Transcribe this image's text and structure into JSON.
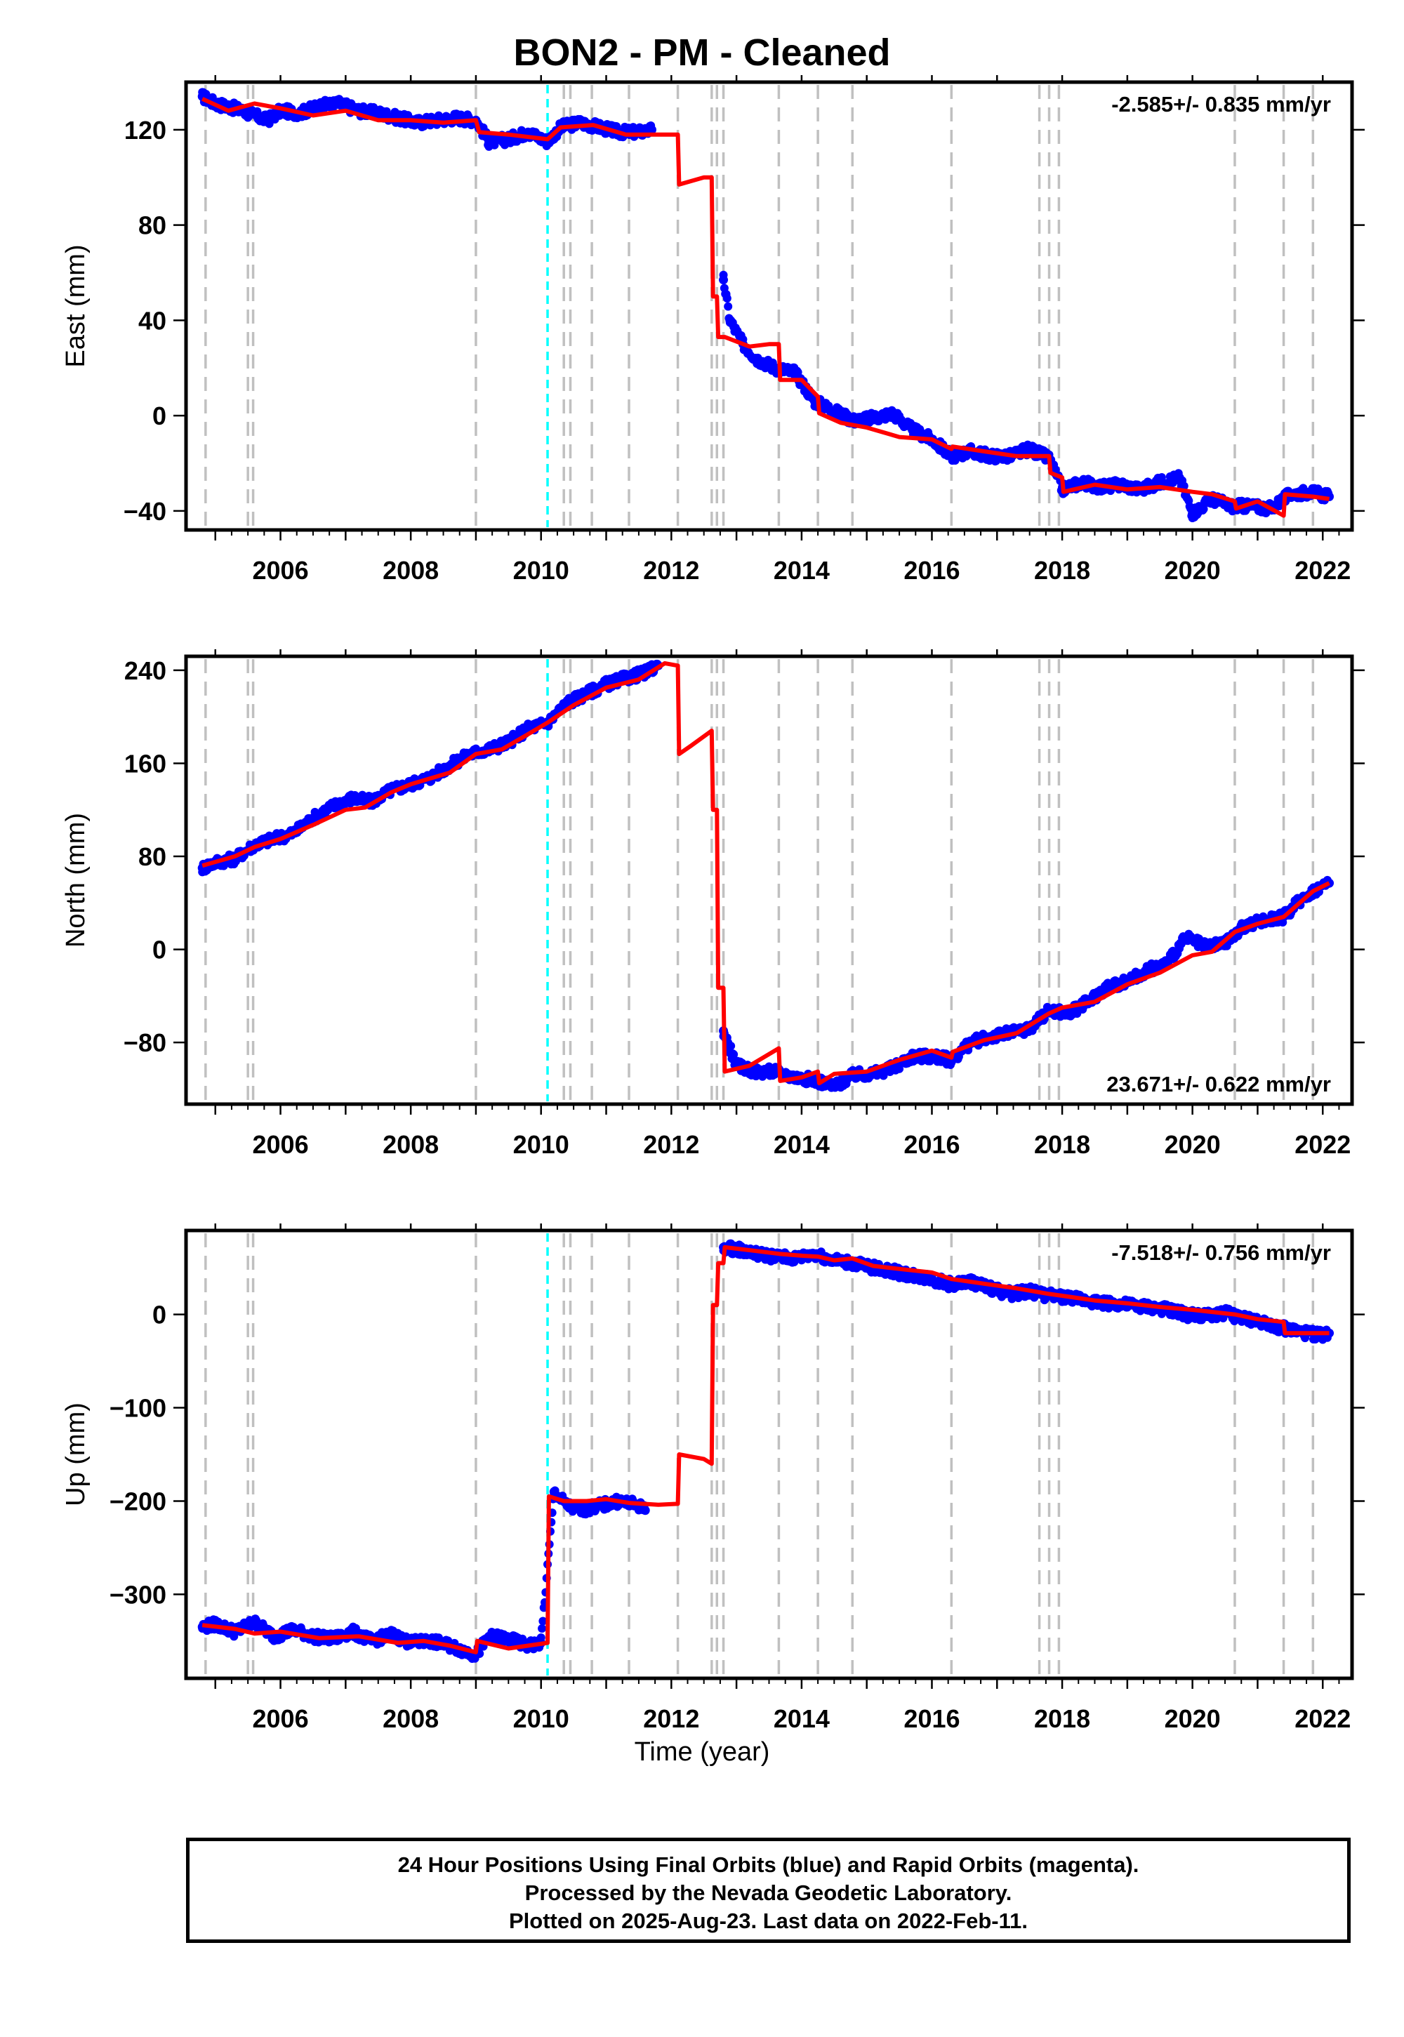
{
  "title": "BON2  - PM - Cleaned",
  "xlabel": "Time (year)",
  "footer": {
    "line1": "24 Hour Positions Using Final Orbits (blue) and Rapid Orbits (magenta).",
    "line2": "Processed by the Nevada Geodetic Laboratory.",
    "line3": "Plotted on 2025-Aug-23. Last data on 2022-Feb-11."
  },
  "colors": {
    "data": "#0000ff",
    "model": "#ff0000",
    "event_lines": "#c0c0c0",
    "highlight_line": "#00ffff"
  },
  "event_lines": [
    2004.85,
    2005.5,
    2005.58,
    2009.0,
    2010.35,
    2010.45,
    2010.78,
    2011.35,
    2012.1,
    2012.62,
    2012.7,
    2012.8,
    2013.65,
    2014.25,
    2014.78,
    2016.3,
    2017.65,
    2017.8,
    2017.95,
    2020.65,
    2021.4,
    2021.85
  ],
  "highlight_line": 2010.1,
  "xlim": [
    2004.55,
    2022.45
  ],
  "xticks": [
    2006,
    2008,
    2010,
    2012,
    2014,
    2016,
    2018,
    2020,
    2022
  ],
  "chart_data": [
    {
      "type": "scatter",
      "ylabel": "East (mm)",
      "ylim": [
        -48,
        140
      ],
      "yticks": [
        -40,
        0,
        40,
        80,
        120
      ],
      "rate_label": "-2.585+/- 0.835 mm/yr",
      "rate_position": "top-right",
      "series": [
        {
          "values_kind": "data",
          "x": [
            2004.8,
            2005.0,
            2005.3,
            2005.5,
            2005.8,
            2006.0,
            2006.3,
            2006.6,
            2006.9,
            2007.2,
            2007.5,
            2007.8,
            2008.1,
            2008.4,
            2008.7,
            2009.0,
            2009.2,
            2009.5,
            2009.8,
            2010.1,
            2010.3,
            2010.6,
            2010.9,
            2011.2,
            2011.5,
            2011.7,
            2012.8,
            2012.9,
            2013.1,
            2013.3,
            2013.6,
            2013.9,
            2014.2,
            2014.5,
            2014.8,
            2015.1,
            2015.4,
            2015.7,
            2016.0,
            2016.3,
            2016.6,
            2016.9,
            2017.2,
            2017.5,
            2017.8,
            2018.0,
            2018.3,
            2018.6,
            2018.9,
            2019.2,
            2019.5,
            2019.8,
            2020.0,
            2020.3,
            2020.6,
            2020.9,
            2021.2,
            2021.5,
            2021.8,
            2022.1
          ],
          "y": [
            134,
            131,
            129,
            127,
            124,
            128,
            127,
            130,
            131,
            128,
            127,
            125,
            123,
            124,
            125,
            124,
            115,
            116,
            119,
            115,
            121,
            123,
            121,
            119,
            119,
            120,
            57,
            40,
            30,
            24,
            20,
            18,
            6,
            2,
            -2,
            -1,
            1,
            -6,
            -10,
            -17,
            -15,
            -17,
            -17,
            -14,
            -18,
            -31,
            -28,
            -30,
            -29,
            -31,
            -28,
            -26,
            -41,
            -35,
            -38,
            -38,
            -39,
            -33,
            -32,
            -34
          ]
        },
        {
          "values_kind": "model",
          "x": [
            2004.8,
            2005.2,
            2005.6,
            2006.0,
            2006.5,
            2007.0,
            2007.5,
            2008.0,
            2008.5,
            2009.0,
            2009.05,
            2009.5,
            2010.1,
            2010.3,
            2010.8,
            2011.3,
            2011.8,
            2012.1,
            2012.12,
            2012.5,
            2012.62,
            2012.64,
            2012.7,
            2012.72,
            2012.8,
            2012.82,
            2013.2,
            2013.5,
            2013.65,
            2013.67,
            2014.0,
            2014.25,
            2014.27,
            2014.6,
            2015.0,
            2015.5,
            2016.0,
            2016.3,
            2016.32,
            2016.8,
            2017.3,
            2017.8,
            2017.82,
            2018.0,
            2018.02,
            2018.5,
            2019.0,
            2019.5,
            2020.0,
            2020.3,
            2020.65,
            2020.67,
            2021.0,
            2021.4,
            2021.42,
            2021.85,
            2022.1
          ],
          "y": [
            133,
            128,
            131,
            129,
            126,
            128,
            124,
            124,
            123,
            124,
            119,
            118,
            116,
            121,
            122,
            118,
            118,
            118,
            97,
            100,
            100,
            50,
            50,
            33,
            33,
            33,
            29,
            30,
            30,
            15,
            15,
            8,
            1,
            -3,
            -5,
            -9,
            -10,
            -14,
            -13,
            -15,
            -17,
            -17,
            -24,
            -26,
            -32,
            -29,
            -31,
            -30,
            -32,
            -33,
            -36,
            -39,
            -36,
            -42,
            -33,
            -34,
            -35
          ]
        }
      ]
    },
    {
      "type": "scatter",
      "ylabel": "North (mm)",
      "ylim": [
        -133,
        252
      ],
      "yticks": [
        -80,
        0,
        80,
        160,
        240
      ],
      "rate_label": "23.671+/- 0.622 mm/yr",
      "rate_position": "bottom-right",
      "series": [
        {
          "values_kind": "data",
          "x": [
            2004.8,
            2005.0,
            2005.3,
            2005.6,
            2005.9,
            2006.2,
            2006.5,
            2006.8,
            2007.1,
            2007.4,
            2007.7,
            2008.0,
            2008.3,
            2008.6,
            2008.9,
            2009.2,
            2009.5,
            2009.8,
            2010.1,
            2010.4,
            2010.7,
            2011.0,
            2011.3,
            2011.6,
            2011.8,
            2012.8,
            2013.0,
            2013.3,
            2013.6,
            2013.9,
            2014.2,
            2014.5,
            2014.8,
            2015.1,
            2015.4,
            2015.7,
            2016.0,
            2016.3,
            2016.6,
            2016.9,
            2017.2,
            2017.5,
            2017.8,
            2018.1,
            2018.4,
            2018.7,
            2019.0,
            2019.3,
            2019.6,
            2019.9,
            2020.2,
            2020.5,
            2020.8,
            2021.1,
            2021.4,
            2021.7,
            2022.0,
            2022.1
          ],
          "y": [
            70,
            75,
            78,
            90,
            95,
            100,
            113,
            123,
            130,
            127,
            137,
            142,
            148,
            158,
            168,
            172,
            178,
            190,
            195,
            212,
            220,
            228,
            233,
            238,
            244,
            -70,
            -100,
            -105,
            -105,
            -110,
            -112,
            -118,
            -108,
            -107,
            -102,
            -92,
            -92,
            -95,
            -80,
            -75,
            -72,
            -68,
            -52,
            -55,
            -45,
            -32,
            -28,
            -18,
            -12,
            10,
            2,
            5,
            20,
            25,
            28,
            45,
            55,
            57
          ]
        },
        {
          "values_kind": "model",
          "x": [
            2004.8,
            2005.3,
            2005.6,
            2006.0,
            2006.5,
            2007.0,
            2007.3,
            2007.7,
            2008.0,
            2008.6,
            2009.0,
            2009.4,
            2009.8,
            2010.1,
            2010.5,
            2011.0,
            2011.5,
            2011.9,
            2012.1,
            2012.12,
            2012.3,
            2012.62,
            2012.64,
            2012.7,
            2012.72,
            2012.8,
            2012.82,
            2013.2,
            2013.65,
            2013.67,
            2014.0,
            2014.25,
            2014.27,
            2014.5,
            2015.0,
            2015.5,
            2016.0,
            2016.3,
            2016.32,
            2016.8,
            2017.3,
            2017.8,
            2018.0,
            2018.5,
            2019.0,
            2019.5,
            2020.0,
            2020.3,
            2020.65,
            2021.0,
            2021.4,
            2021.85,
            2022.1
          ],
          "y": [
            72,
            80,
            88,
            95,
            107,
            120,
            122,
            135,
            142,
            152,
            168,
            172,
            185,
            195,
            210,
            225,
            232,
            246,
            244,
            168,
            175,
            188,
            120,
            120,
            -33,
            -33,
            -105,
            -100,
            -85,
            -113,
            -110,
            -105,
            -115,
            -107,
            -105,
            -95,
            -87,
            -93,
            -88,
            -78,
            -72,
            -55,
            -50,
            -45,
            -30,
            -20,
            -5,
            -2,
            15,
            22,
            28,
            50,
            57
          ]
        }
      ]
    },
    {
      "type": "scatter",
      "ylabel": "Up (mm)",
      "ylim": [
        -390,
        90
      ],
      "yticks": [
        -300,
        -200,
        -100,
        0
      ],
      "rate_label": "-7.518+/- 0.756 mm/yr",
      "rate_position": "top-right",
      "series": [
        {
          "values_kind": "data",
          "x": [
            2004.8,
            2005.0,
            2005.3,
            2005.6,
            2005.9,
            2006.2,
            2006.5,
            2006.8,
            2007.1,
            2007.4,
            2007.7,
            2008.0,
            2008.3,
            2008.6,
            2008.8,
            2009.0,
            2009.2,
            2009.5,
            2009.8,
            2010.0,
            2010.2,
            2010.4,
            2010.6,
            2010.9,
            2011.2,
            2011.5,
            2011.6,
            2012.8,
            2013.0,
            2013.3,
            2013.6,
            2013.9,
            2014.2,
            2014.5,
            2014.8,
            2015.1,
            2015.4,
            2015.7,
            2016.0,
            2016.3,
            2016.6,
            2016.9,
            2017.2,
            2017.5,
            2017.8,
            2018.1,
            2018.4,
            2018.7,
            2019.0,
            2019.3,
            2019.6,
            2019.9,
            2020.2,
            2020.5,
            2020.8,
            2021.1,
            2021.4,
            2021.7,
            2022.0,
            2022.1
          ],
          "y": [
            -335,
            -332,
            -340,
            -330,
            -345,
            -338,
            -345,
            -348,
            -340,
            -350,
            -343,
            -352,
            -350,
            -355,
            -360,
            -365,
            -345,
            -348,
            -355,
            -352,
            -190,
            -205,
            -210,
            -205,
            -200,
            -205,
            -210,
            72,
            70,
            65,
            62,
            60,
            65,
            58,
            55,
            50,
            46,
            42,
            38,
            32,
            35,
            28,
            22,
            25,
            20,
            18,
            15,
            12,
            10,
            8,
            5,
            0,
            -2,
            2,
            -5,
            -8,
            -15,
            -20,
            -22,
            -20
          ]
        },
        {
          "values_kind": "model",
          "x": [
            2004.8,
            2005.3,
            2005.6,
            2006.0,
            2006.6,
            2007.2,
            2007.8,
            2008.2,
            2008.6,
            2009.0,
            2009.02,
            2009.5,
            2010.1,
            2010.12,
            2010.35,
            2010.7,
            2011.0,
            2011.35,
            2011.8,
            2012.1,
            2012.12,
            2012.5,
            2012.62,
            2012.64,
            2012.7,
            2012.72,
            2012.8,
            2012.82,
            2013.3,
            2013.65,
            2014.0,
            2014.25,
            2014.5,
            2014.78,
            2015.1,
            2015.6,
            2016.0,
            2016.3,
            2016.8,
            2017.3,
            2017.8,
            2018.0,
            2018.5,
            2019.0,
            2019.5,
            2020.0,
            2020.65,
            2021.0,
            2021.4,
            2021.42,
            2021.85,
            2022.1
          ],
          "y": [
            -333,
            -337,
            -342,
            -340,
            -347,
            -345,
            -352,
            -350,
            -355,
            -362,
            -350,
            -358,
            -352,
            -195,
            -200,
            -200,
            -198,
            -202,
            -204,
            -203,
            -150,
            -155,
            -160,
            10,
            10,
            55,
            55,
            72,
            68,
            65,
            63,
            62,
            58,
            60,
            52,
            48,
            45,
            38,
            33,
            28,
            22,
            20,
            15,
            12,
            8,
            5,
            0,
            -5,
            -8,
            -20,
            -20,
            -20
          ]
        }
      ]
    }
  ]
}
